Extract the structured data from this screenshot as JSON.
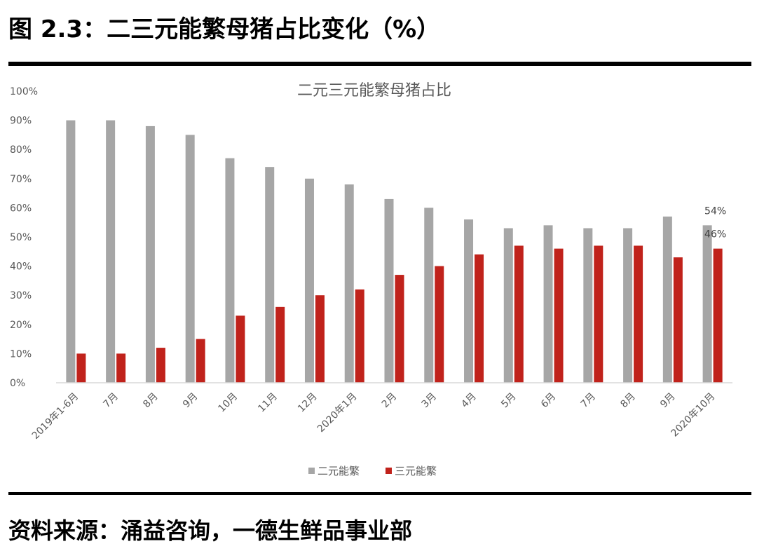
{
  "figure": {
    "title": "图 2.3：二三元能繁母猪占比变化（%）",
    "source": "资料来源：涌益咨询，一德生鲜品事业部"
  },
  "chart_data": {
    "type": "bar",
    "title": "二元三元能繁母猪占比",
    "categories": [
      "2019年1-6月",
      "7月",
      "8月",
      "9月",
      "10月",
      "11月",
      "12月",
      "2020年1月",
      "2月",
      "3月",
      "4月",
      "5月",
      "6月",
      "7月",
      "8月",
      "9月",
      "2020年10月"
    ],
    "series": [
      {
        "name": "二元能繁",
        "color": "#A6A6A6",
        "values": [
          90,
          90,
          88,
          85,
          77,
          74,
          70,
          68,
          63,
          60,
          56,
          53,
          54,
          53,
          53,
          57,
          54
        ]
      },
      {
        "name": "三元能繁",
        "color": "#C0221B",
        "values": [
          10,
          10,
          12,
          15,
          23,
          26,
          30,
          32,
          37,
          40,
          44,
          47,
          46,
          47,
          47,
          43,
          46
        ]
      }
    ],
    "data_labels": [
      {
        "series": 0,
        "index": 16,
        "text": "54%"
      },
      {
        "series": 1,
        "index": 16,
        "text": "46%"
      }
    ],
    "yticks": [
      "0%",
      "10%",
      "20%",
      "30%",
      "40%",
      "50%",
      "60%",
      "70%",
      "80%",
      "90%",
      "100%"
    ],
    "ylim": [
      0,
      100
    ],
    "grid": false,
    "legend": "bottom-center"
  }
}
